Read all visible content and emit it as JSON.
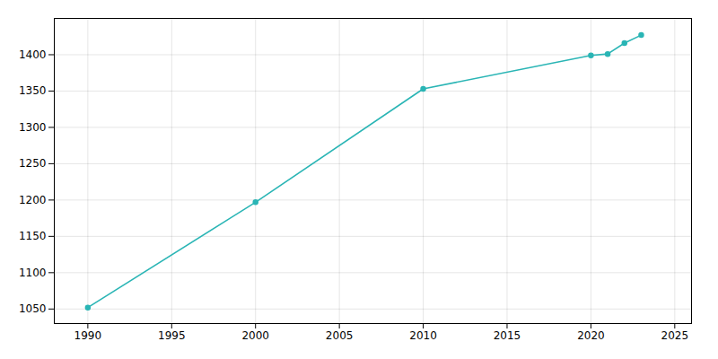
{
  "chart_data": {
    "type": "line",
    "x": [
      1990,
      2000,
      2010,
      2020,
      2021,
      2022,
      2023
    ],
    "values": [
      1052,
      1197,
      1353,
      1399,
      1401,
      1416,
      1427
    ],
    "color": "#2ab5b5",
    "marker": "circle",
    "xlim": [
      1988,
      2026
    ],
    "ylim": [
      1030,
      1450
    ],
    "xticks": [
      1990,
      1995,
      2000,
      2005,
      2010,
      2015,
      2020,
      2025
    ],
    "yticks": [
      1050,
      1100,
      1150,
      1200,
      1250,
      1300,
      1350,
      1400
    ],
    "grid": true
  }
}
